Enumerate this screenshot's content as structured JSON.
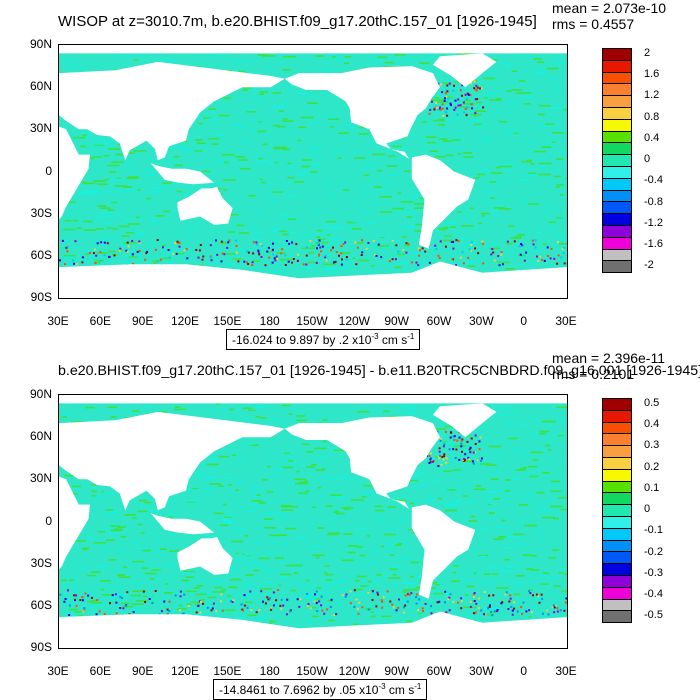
{
  "panels": [
    {
      "title": "WISOP at z=3010.7m, b.e20.BHIST.f09_g17.20thC.157_01 [1926-1945]",
      "mean": "mean = 2.073e-10",
      "rms": "rms = 0.4557",
      "range_text": "-16.024 to 9.897 by .2 x10",
      "range_exp": "-3",
      "range_unit": " cm s",
      "range_unit_exp": "-1",
      "colorbar_labels": [
        "2",
        "1.6",
        "1.2",
        "0.8",
        "0.4",
        "0",
        "-0.4",
        "-0.8",
        "-1.2",
        "-1.6",
        "-2"
      ]
    },
    {
      "title": "b.e20.BHIST.f09_g17.20thC.157_01 [1926-1945] - b.e11.B20TRC5CNBDRD.f09_g16.001 [1926-1945]",
      "mean": "mean = 2.396e-11",
      "rms": "rms = 0.2101",
      "range_text": "-14.8461 to 7.6962 by .05 x10",
      "range_exp": "-3",
      "range_unit": " cm s",
      "range_unit_exp": "-1",
      "colorbar_labels": [
        "0.5",
        "0.4",
        "0.3",
        "0.2",
        "0.1",
        "0",
        "-0.1",
        "-0.2",
        "-0.3",
        "-0.4",
        "-0.5"
      ]
    }
  ],
  "lat_labels": [
    "90N",
    "60N",
    "30N",
    "0",
    "30S",
    "60S",
    "90S"
  ],
  "lon_labels": [
    "30E",
    "60E",
    "90E",
    "120E",
    "150E",
    "180",
    "150W",
    "120W",
    "90W",
    "60W",
    "30W",
    "0",
    "30E"
  ],
  "colors": {
    "ocean_main": "#2ee6c8",
    "ocean_light": "#18f0e0",
    "ocean_green": "#40e040",
    "land": "#ffffff",
    "colorbar": [
      "#a00000",
      "#e81800",
      "#f85000",
      "#f88030",
      "#f8a040",
      "#f8d040",
      "#f8f800",
      "#58e000",
      "#10d860",
      "#20e8b0",
      "#30f0e8",
      "#00c8f8",
      "#0090f8",
      "#0058f8",
      "#0000e0",
      "#9000d8",
      "#f000d8",
      "#c0c0c0",
      "#707070"
    ]
  }
}
